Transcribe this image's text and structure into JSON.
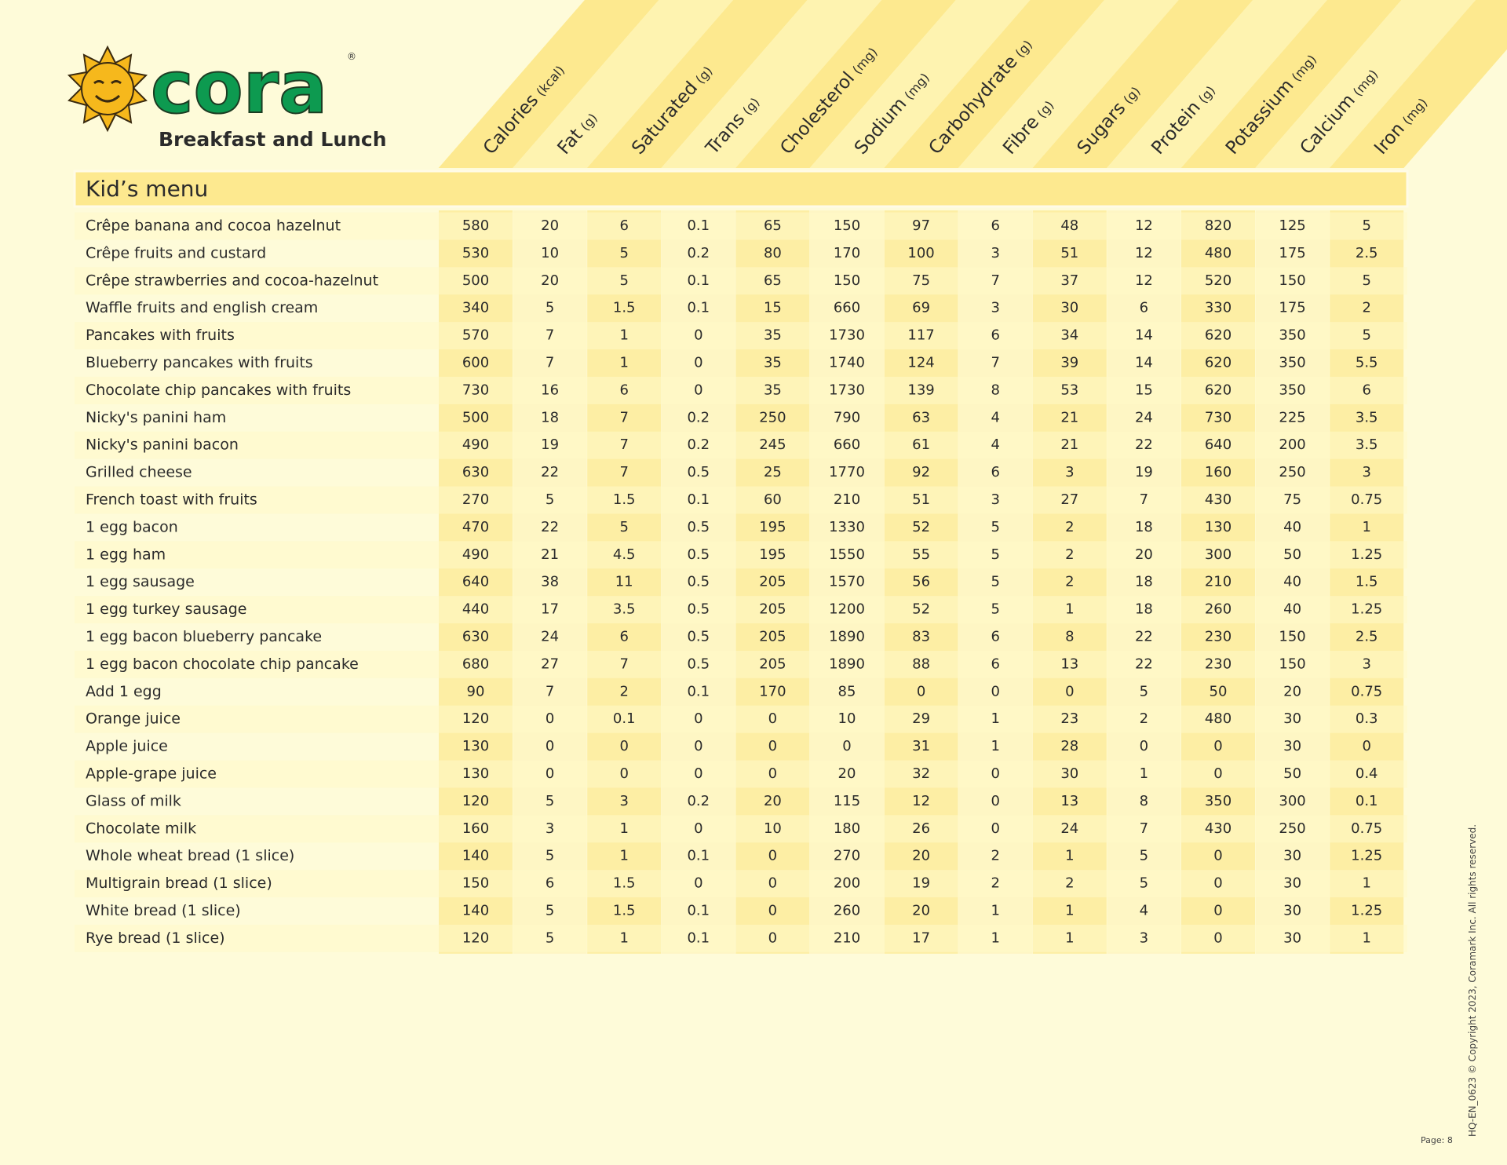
{
  "logo": {
    "brand": "cora",
    "registered": "®",
    "tagline": "Breakfast and Lunch"
  },
  "columns": [
    {
      "name": "Calories",
      "unit": "(kcal)"
    },
    {
      "name": "Fat",
      "unit": "(g)"
    },
    {
      "name": "Saturated",
      "unit": "(g)"
    },
    {
      "name": "Trans",
      "unit": "(g)"
    },
    {
      "name": "Cholesterol",
      "unit": "(mg)"
    },
    {
      "name": "Sodium",
      "unit": "(mg)"
    },
    {
      "name": "Carbohydrate",
      "unit": "(g)"
    },
    {
      "name": "Fibre",
      "unit": "(g)"
    },
    {
      "name": "Sugars",
      "unit": "(g)"
    },
    {
      "name": "Protein",
      "unit": "(g)"
    },
    {
      "name": "Potassium",
      "unit": "(mg)"
    },
    {
      "name": "Calcium",
      "unit": "(mg)"
    },
    {
      "name": "Iron",
      "unit": "(mg)"
    }
  ],
  "section": "Kid’s menu",
  "rows": [
    {
      "item": "Crêpe banana and cocoa hazelnut",
      "values": [
        580,
        20,
        6,
        0.1,
        65,
        150,
        97,
        6,
        48,
        12,
        820,
        125,
        5
      ]
    },
    {
      "item": "Crêpe fruits and custard",
      "values": [
        530,
        10,
        5,
        0.2,
        80,
        170,
        100,
        3,
        51,
        12,
        480,
        175,
        2.5
      ]
    },
    {
      "item": "Crêpe strawberries and cocoa-hazelnut",
      "values": [
        500,
        20,
        5,
        0.1,
        65,
        150,
        75,
        7,
        37,
        12,
        520,
        150,
        5
      ]
    },
    {
      "item": "Waffle fruits and english cream",
      "values": [
        340,
        5,
        1.5,
        0.1,
        15,
        660,
        69,
        3,
        30,
        6,
        330,
        175,
        2
      ]
    },
    {
      "item": "Pancakes with fruits",
      "values": [
        570,
        7,
        1,
        0,
        35,
        1730,
        117,
        6,
        34,
        14,
        620,
        350,
        5
      ]
    },
    {
      "item": "Blueberry pancakes with fruits",
      "values": [
        600,
        7,
        1,
        0,
        35,
        1740,
        124,
        7,
        39,
        14,
        620,
        350,
        5.5
      ]
    },
    {
      "item": "Chocolate chip pancakes with fruits",
      "values": [
        730,
        16,
        6,
        0,
        35,
        1730,
        139,
        8,
        53,
        15,
        620,
        350,
        6
      ]
    },
    {
      "item": "Nicky's panini ham",
      "values": [
        500,
        18,
        7,
        0.2,
        250,
        790,
        63,
        4,
        21,
        24,
        730,
        225,
        3.5
      ]
    },
    {
      "item": "Nicky's panini bacon",
      "values": [
        490,
        19,
        7,
        0.2,
        245,
        660,
        61,
        4,
        21,
        22,
        640,
        200,
        3.5
      ]
    },
    {
      "item": "Grilled cheese",
      "values": [
        630,
        22,
        7,
        0.5,
        25,
        1770,
        92,
        6,
        3,
        19,
        160,
        250,
        3
      ]
    },
    {
      "item": "French toast with fruits",
      "values": [
        270,
        5,
        1.5,
        0.1,
        60,
        210,
        51,
        3,
        27,
        7,
        430,
        75,
        0.75
      ]
    },
    {
      "item": "1 egg bacon",
      "values": [
        470,
        22,
        5,
        0.5,
        195,
        1330,
        52,
        5,
        2,
        18,
        130,
        40,
        1
      ]
    },
    {
      "item": "1 egg ham",
      "values": [
        490,
        21,
        4.5,
        0.5,
        195,
        1550,
        55,
        5,
        2,
        20,
        300,
        50,
        1.25
      ]
    },
    {
      "item": "1 egg sausage",
      "values": [
        640,
        38,
        11,
        0.5,
        205,
        1570,
        56,
        5,
        2,
        18,
        210,
        40,
        1.5
      ]
    },
    {
      "item": "1 egg turkey sausage",
      "values": [
        440,
        17,
        3.5,
        0.5,
        205,
        1200,
        52,
        5,
        1,
        18,
        260,
        40,
        1.25
      ]
    },
    {
      "item": "1 egg bacon blueberry pancake",
      "values": [
        630,
        24,
        6,
        0.5,
        205,
        1890,
        83,
        6,
        8,
        22,
        230,
        150,
        2.5
      ]
    },
    {
      "item": "1 egg bacon chocolate chip pancake",
      "values": [
        680,
        27,
        7,
        0.5,
        205,
        1890,
        88,
        6,
        13,
        22,
        230,
        150,
        3
      ]
    },
    {
      "item": "Add 1 egg",
      "values": [
        90,
        7,
        2,
        0.1,
        170,
        85,
        0,
        0,
        0,
        5,
        50,
        20,
        0.75
      ]
    },
    {
      "item": "Orange juice",
      "values": [
        120,
        0,
        0.1,
        0,
        0,
        10,
        29,
        1,
        23,
        2,
        480,
        30,
        0.3
      ]
    },
    {
      "item": "Apple juice",
      "values": [
        130,
        0,
        0,
        0,
        0,
        0,
        31,
        1,
        28,
        0,
        0,
        30,
        0
      ]
    },
    {
      "item": "Apple-grape juice",
      "values": [
        130,
        0,
        0,
        0,
        0,
        20,
        32,
        0,
        30,
        1,
        0,
        50,
        0.4
      ]
    },
    {
      "item": "Glass of milk",
      "values": [
        120,
        5,
        3,
        0.2,
        20,
        115,
        12,
        0,
        13,
        8,
        350,
        300,
        0.1
      ]
    },
    {
      "item": "Chocolate milk",
      "values": [
        160,
        3,
        1,
        0,
        10,
        180,
        26,
        0,
        24,
        7,
        430,
        250,
        0.75
      ]
    },
    {
      "item": "Whole wheat bread (1 slice)",
      "values": [
        140,
        5,
        1,
        0.1,
        0,
        270,
        20,
        2,
        1,
        5,
        0,
        30,
        1.25
      ]
    },
    {
      "item": "Multigrain bread  (1 slice)",
      "values": [
        150,
        6,
        1.5,
        0,
        0,
        200,
        19,
        2,
        2,
        5,
        0,
        30,
        1
      ]
    },
    {
      "item": "White bread  (1 slice)",
      "values": [
        140,
        5,
        1.5,
        0.1,
        0,
        260,
        20,
        1,
        1,
        4,
        0,
        30,
        1.25
      ]
    },
    {
      "item": "Rye bread  (1 slice)",
      "values": [
        120,
        5,
        1,
        0.1,
        0,
        210,
        17,
        1,
        1,
        3,
        0,
        30,
        1
      ]
    }
  ],
  "footer": {
    "copyright": "HQ-EN_0623 © Copyright 2023, Coramark Inc. All rights reserved.",
    "page": "Page: 8"
  }
}
